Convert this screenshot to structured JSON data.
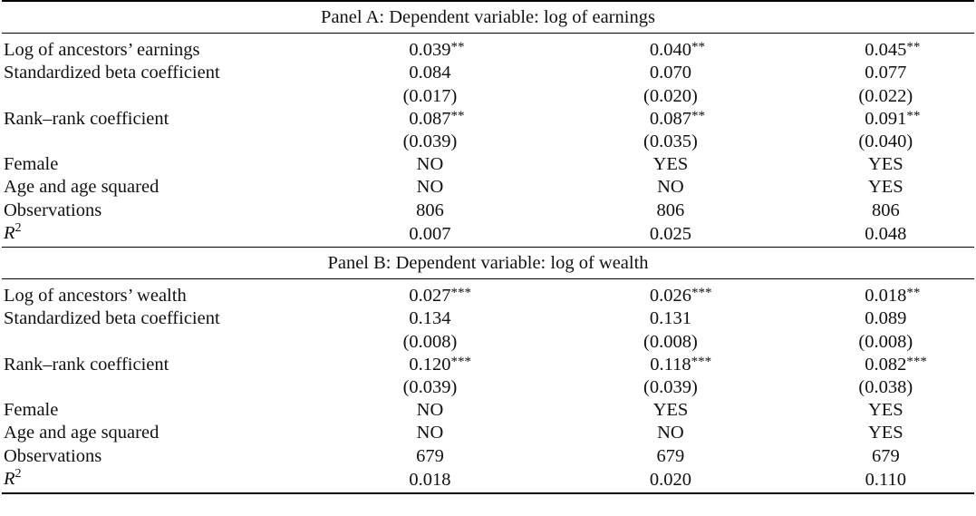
{
  "panel_a": {
    "title": "Panel A: Dependent variable: log of earnings",
    "rows": [
      {
        "label": "Log of ancestors’ earnings",
        "c1": "0.039",
        "s1": "**",
        "c2": "0.040",
        "s2": "**",
        "c3": "0.045",
        "s3": "**"
      },
      {
        "label": "Standardized beta coefficient",
        "c1": "0.084",
        "s1": "",
        "c2": "0.070",
        "s2": "",
        "c3": "0.077",
        "s3": ""
      },
      {
        "label": "",
        "c1": "(0.017)",
        "s1": "",
        "c2": "(0.020)",
        "s2": "",
        "c3": "(0.022)",
        "s3": ""
      },
      {
        "label": "Rank–rank coefficient",
        "c1": "0.087",
        "s1": "**",
        "c2": "0.087",
        "s2": "**",
        "c3": "0.091",
        "s3": "**"
      },
      {
        "label": "",
        "c1": "(0.039)",
        "s1": "",
        "c2": "(0.035)",
        "s2": "",
        "c3": "(0.040)",
        "s3": ""
      },
      {
        "label": "Female",
        "c1": "NO",
        "s1": "",
        "c2": "YES",
        "s2": "",
        "c3": "YES",
        "s3": ""
      },
      {
        "label": "Age and age squared",
        "c1": "NO",
        "s1": "",
        "c2": "NO",
        "s2": "",
        "c3": "YES",
        "s3": ""
      },
      {
        "label": "Observations",
        "c1": "806",
        "s1": "",
        "c2": "806",
        "s2": "",
        "c3": "806",
        "s3": ""
      }
    ],
    "r2": {
      "label_base": "R",
      "label_sup": "2",
      "c1": "0.007",
      "c2": "0.025",
      "c3": "0.048"
    }
  },
  "panel_b": {
    "title": "Panel B: Dependent variable: log of wealth",
    "rows": [
      {
        "label": "Log of ancestors’ wealth",
        "c1": "0.027",
        "s1": "***",
        "c2": "0.026",
        "s2": "***",
        "c3": "0.018",
        "s3": "**"
      },
      {
        "label": "Standardized beta coefficient",
        "c1": "0.134",
        "s1": "",
        "c2": "0.131",
        "s2": "",
        "c3": "0.089",
        "s3": ""
      },
      {
        "label": "",
        "c1": "(0.008)",
        "s1": "",
        "c2": "(0.008)",
        "s2": "",
        "c3": "(0.008)",
        "s3": ""
      },
      {
        "label": "Rank–rank coefficient",
        "c1": "0.120",
        "s1": "***",
        "c2": "0.118",
        "s2": "***",
        "c3": "0.082",
        "s3": "***"
      },
      {
        "label": "",
        "c1": "(0.039)",
        "s1": "",
        "c2": "(0.039)",
        "s2": "",
        "c3": "(0.038)",
        "s3": ""
      },
      {
        "label": "Female",
        "c1": "NO",
        "s1": "",
        "c2": "YES",
        "s2": "",
        "c3": "YES",
        "s3": ""
      },
      {
        "label": "Age and age squared",
        "c1": "NO",
        "s1": "",
        "c2": "NO",
        "s2": "",
        "c3": "YES",
        "s3": ""
      },
      {
        "label": "Observations",
        "c1": "679",
        "s1": "",
        "c2": "679",
        "s2": "",
        "c3": "679",
        "s3": ""
      }
    ],
    "r2": {
      "label_base": "R",
      "label_sup": "2",
      "c1": "0.018",
      "c2": "0.020",
      "c3": "0.110"
    }
  }
}
